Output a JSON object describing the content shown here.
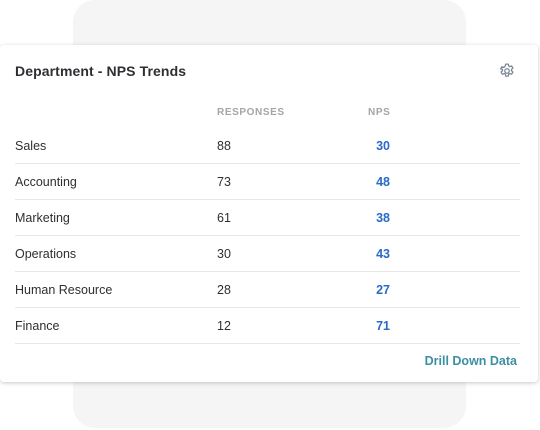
{
  "card": {
    "title": "Department - NPS Trends",
    "settings_icon": "gear-icon"
  },
  "table": {
    "headers": {
      "responses": "RESPONSES",
      "nps": "NPS"
    },
    "rows": [
      {
        "department": "Sales",
        "responses": "88",
        "nps": "30"
      },
      {
        "department": "Accounting",
        "responses": "73",
        "nps": "48"
      },
      {
        "department": "Marketing",
        "responses": "61",
        "nps": "38"
      },
      {
        "department": "Operations",
        "responses": "30",
        "nps": "43"
      },
      {
        "department": "Human Resource",
        "responses": "28",
        "nps": "27"
      },
      {
        "department": "Finance",
        "responses": "12",
        "nps": "71"
      }
    ]
  },
  "footer": {
    "drill_label": "Drill Down Data"
  },
  "colors": {
    "nps_value": "#2a6ac9",
    "link": "#3c8fa3",
    "header_text": "#a4a4aa",
    "body_text": "#2f2f33"
  }
}
